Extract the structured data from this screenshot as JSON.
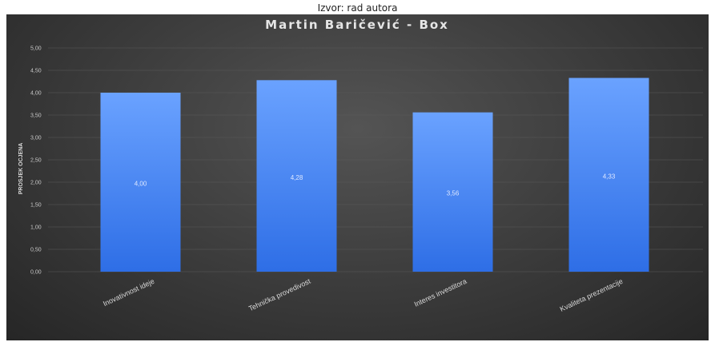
{
  "caption": "Izvor: rad autora",
  "chart_data": {
    "type": "bar",
    "title": "Martin Baričević - Box",
    "ylabel": "PROSJEK OCJENA",
    "xlabel": "",
    "categories": [
      "Inovativnost ideje",
      "Tehnička provedivost",
      "Interes investitora",
      "Kvaliteta prezentacije"
    ],
    "values": [
      4.0,
      4.28,
      3.56,
      4.33
    ],
    "data_labels": [
      "4,00",
      "4,28",
      "3,56",
      "4,33"
    ],
    "ylim": [
      0,
      5
    ],
    "yticks": [
      0,
      0.5,
      1,
      1.5,
      2,
      2.5,
      3,
      3.5,
      4,
      4.5,
      5
    ],
    "ytick_labels": [
      "0,00",
      "0,50",
      "1,00",
      "1,50",
      "2,00",
      "2,50",
      "3,00",
      "3,50",
      "4,00",
      "4,50",
      "5,00"
    ],
    "grid": true,
    "legend": "none",
    "colors": {
      "bar_top": "#6aa2ff",
      "bar_bottom": "#2e6ee6",
      "background": "#3f3f3f",
      "gridline": "#5a5a5a"
    }
  }
}
